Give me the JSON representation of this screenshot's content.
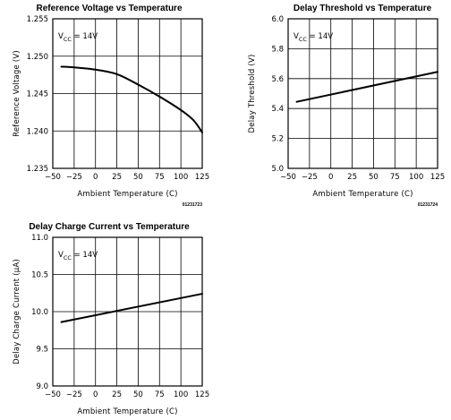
{
  "chart_data": [
    {
      "type": "line",
      "title": "Reference Voltage vs Temperature",
      "xlabel": "Ambient Temperature (C)",
      "ylabel": "Reference Voltage (V)",
      "annotation": {
        "main": "V",
        "sub": "CC",
        "rest": " = 14V"
      },
      "code": "01231723",
      "xlim": [
        -50,
        125
      ],
      "ylim": [
        1.235,
        1.255
      ],
      "x_ticks": [
        -50,
        -25,
        0,
        25,
        50,
        75,
        100,
        125
      ],
      "x_tick_labels": [
        "−50",
        "−25",
        "0",
        "25",
        "50",
        "75",
        "100",
        "125"
      ],
      "y_ticks": [
        1.235,
        1.24,
        1.245,
        1.25,
        1.255
      ],
      "y_tick_labels": [
        "1.235",
        "1.240",
        "1.245",
        "1.250",
        "1.255"
      ],
      "grid": true,
      "x": [
        -40,
        -25,
        0,
        25,
        50,
        75,
        100,
        115,
        125
      ],
      "y": [
        1.2486,
        1.2485,
        1.2482,
        1.2476,
        1.2462,
        1.2446,
        1.2428,
        1.2414,
        1.2398
      ]
    },
    {
      "type": "line",
      "title": "Delay Threshold vs Temperature",
      "xlabel": "Ambient Temperature (C)",
      "ylabel": "Delay Threshold (V)",
      "annotation": {
        "main": "V",
        "sub": "CC",
        "rest": " = 14V"
      },
      "code": "01231724",
      "xlim": [
        -50,
        125
      ],
      "ylim": [
        5.0,
        6.0
      ],
      "x_ticks": [
        -50,
        -25,
        0,
        25,
        50,
        75,
        100,
        125
      ],
      "x_tick_labels": [
        "−50",
        "−25",
        "0",
        "25",
        "50",
        "75",
        "100",
        "125"
      ],
      "y_ticks": [
        5.0,
        5.2,
        5.4,
        5.6,
        5.8,
        6.0
      ],
      "y_tick_labels": [
        "5.0",
        "5.2",
        "5.4",
        "5.6",
        "5.8",
        "6.0"
      ],
      "grid": true,
      "x": [
        -40,
        125
      ],
      "y": [
        5.445,
        5.645
      ]
    },
    {
      "type": "line",
      "title": "Delay Charge Current vs Temperature",
      "xlabel": "Ambient Temperature (C)",
      "ylabel": "Delay Charge Current (μA)",
      "annotation": {
        "main": "V",
        "sub": "CC",
        "rest": " = 14V"
      },
      "code": "",
      "xlim": [
        -50,
        125
      ],
      "ylim": [
        9.0,
        11.0
      ],
      "x_ticks": [
        -50,
        -25,
        0,
        25,
        50,
        75,
        100,
        125
      ],
      "x_tick_labels": [
        "−50",
        "−25",
        "0",
        "25",
        "50",
        "75",
        "100",
        "125"
      ],
      "y_ticks": [
        9.0,
        9.5,
        10.0,
        10.5,
        11.0
      ],
      "y_tick_labels": [
        "9.0",
        "9.5",
        "10.0",
        "10.5",
        "11.0"
      ],
      "grid": true,
      "x": [
        -40,
        125
      ],
      "y": [
        9.86,
        10.24
      ]
    }
  ]
}
